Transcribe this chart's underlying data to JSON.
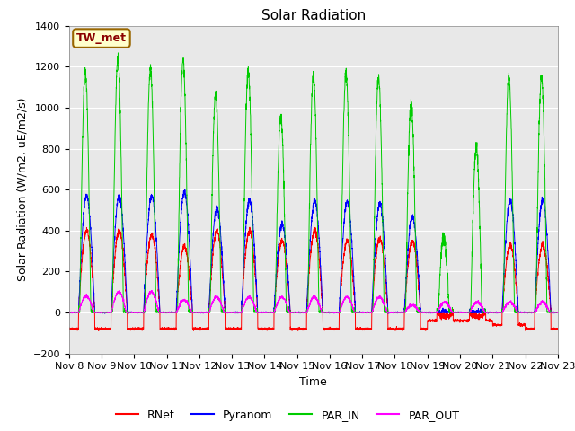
{
  "title": "Solar Radiation",
  "ylabel": "Solar Radiation (W/m2, uE/m2/s)",
  "xlabel": "Time",
  "ylim": [
    -200,
    1400
  ],
  "yticks": [
    -200,
    0,
    200,
    400,
    600,
    800,
    1000,
    1200,
    1400
  ],
  "x_tick_labels": [
    "Nov 8",
    "Nov 9",
    "Nov 10",
    "Nov 11",
    "Nov 12",
    "Nov 13",
    "Nov 14",
    "Nov 15",
    "Nov 16",
    "Nov 17",
    "Nov 18",
    "Nov 19",
    "Nov 20",
    "Nov 21",
    "Nov 22",
    "Nov 23"
  ],
  "legend_labels": [
    "RNet",
    "Pyranom",
    "PAR_IN",
    "PAR_OUT"
  ],
  "legend_colors": [
    "#ff0000",
    "#0000ff",
    "#00cc00",
    "#ff00ff"
  ],
  "station_label": "TW_met",
  "station_box_facecolor": "#ffffcc",
  "station_box_edgecolor": "#996600",
  "background_color": "#e8e8e8",
  "title_fontsize": 11,
  "axis_fontsize": 9,
  "tick_fontsize": 8,
  "legend_fontsize": 9,
  "n_days": 15,
  "points_per_day": 288,
  "rnet_peaks": [
    400,
    400,
    380,
    320,
    400,
    400,
    350,
    400,
    350,
    360,
    350,
    -20,
    -20,
    330,
    330
  ],
  "rnet_nights": [
    -80,
    -80,
    -80,
    -80,
    -80,
    -80,
    -80,
    -80,
    -80,
    -80,
    -80,
    -40,
    -40,
    -60,
    -80
  ],
  "pyranom_peaks": [
    570,
    570,
    570,
    590,
    510,
    550,
    430,
    545,
    540,
    530,
    465,
    0,
    0,
    545,
    550
  ],
  "par_in_peaks": [
    1180,
    1240,
    1190,
    1230,
    1070,
    1180,
    960,
    1160,
    1170,
    1150,
    1020,
    370,
    800,
    1150,
    1150
  ],
  "par_out_peaks": [
    80,
    100,
    100,
    60,
    75,
    75,
    75,
    75,
    75,
    75,
    35,
    50,
    50,
    50,
    50
  ]
}
